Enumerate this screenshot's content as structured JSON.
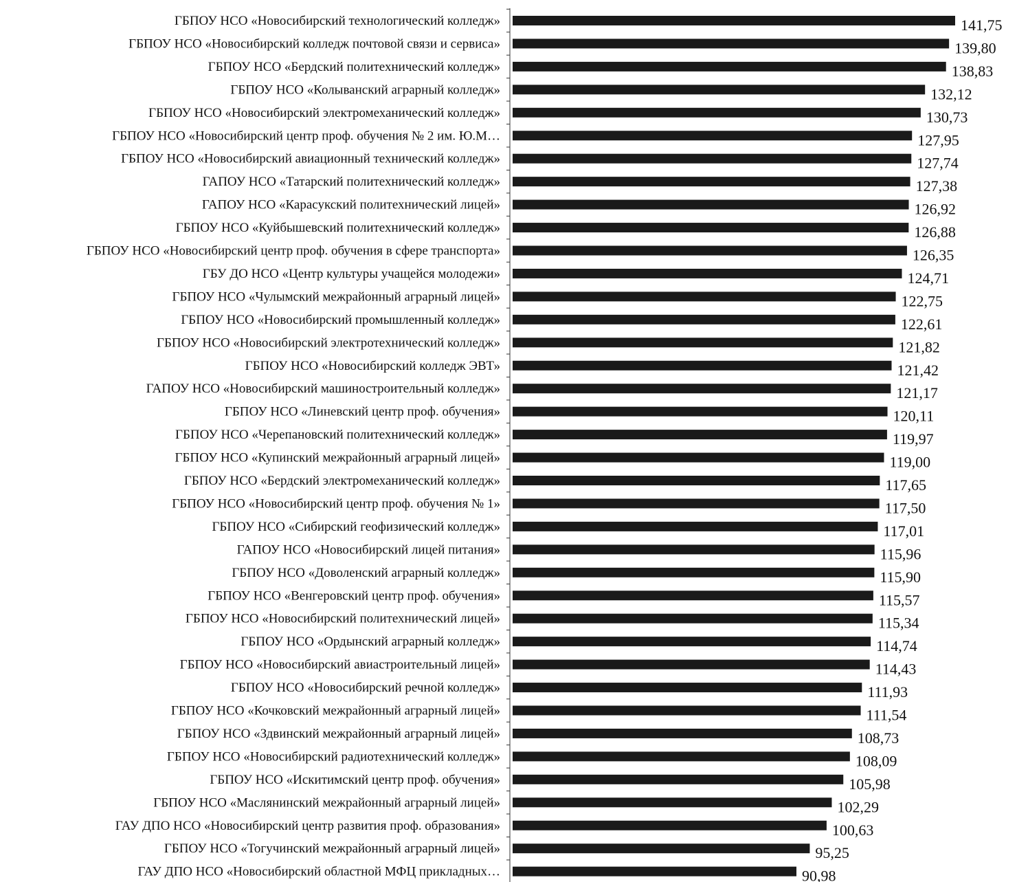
{
  "chart_data": {
    "type": "bar",
    "orientation": "horizontal",
    "title": "",
    "xlabel": "",
    "ylabel": "",
    "grid": false,
    "categories": [
      "ГБПОУ НСО «Новосибирский технологический колледж»",
      "ГБПОУ НСО «Новосибирский колледж почтовой связи и сервиса»",
      "ГБПОУ НСО «Бердский политехнический колледж»",
      "ГБПОУ НСО «Колыванский аграрный колледж»",
      "ГБПОУ НСО «Новосибирский электромеханический колледж»",
      "ГБПОУ НСО «Новосибирский центр проф. обучения № 2 им. Ю.М…",
      "ГБПОУ НСО «Новосибирский авиационный технический колледж»",
      "ГАПОУ НСО «Татарский политехнический колледж»",
      "ГАПОУ НСО «Карасукский политехнический лицей»",
      "ГБПОУ НСО «Куйбышевский политехнический колледж»",
      "ГБПОУ НСО «Новосибирский центр проф. обучения в сфере транспорта»",
      "ГБУ ДО НСО «Центр культуры учащейся молодежи»",
      "ГБПОУ НСО «Чулымский межрайонный аграрный лицей»",
      "ГБПОУ НСО «Новосибирский промышленный колледж»",
      "ГБПОУ НСО «Новосибирский электротехнический колледж»",
      "ГБПОУ НСО «Новосибирский колледж ЭВТ»",
      "ГАПОУ НСО «Новосибирский машиностроительный колледж»",
      "ГБПОУ НСО «Линевский центр проф. обучения»",
      "ГБПОУ НСО «Черепановский политехнический колледж»",
      "ГБПОУ НСО «Купинский межрайонный аграрный лицей»",
      "ГБПОУ НСО «Бердский электромеханический колледж»",
      "ГБПОУ НСО «Новосибирский центр проф. обучения № 1»",
      "ГБПОУ НСО «Сибирский геофизический колледж»",
      "ГАПОУ НСО «Новосибирский лицей питания»",
      "ГБПОУ НСО «Доволенский аграрный колледж»",
      "ГБПОУ НСО «Венгеровский центр проф. обучения»",
      "ГБПОУ НСО «Новосибирский политехнический лицей»",
      "ГБПОУ НСО «Ордынский аграрный колледж»",
      "ГБПОУ НСО «Новосибирский авиастроительный лицей»",
      "ГБПОУ НСО «Новосибирский речной колледж»",
      "ГБПОУ НСО «Кочковский межрайонный аграрный лицей»",
      "ГБПОУ НСО «Здвинский межрайонный аграрный лицей»",
      "ГБПОУ НСО «Новосибирский радиотехнический колледж»",
      "ГБПОУ НСО «Искитимский центр проф. обучения»",
      "ГБПОУ НСО «Маслянинский межрайонный аграрный лицей»",
      "ГАУ ДПО НСО «Новосибирский центр развития проф. образования»",
      "ГБПОУ НСО «Тогучинский межрайонный аграрный лицей»",
      "ГАУ ДПО НСО «Новосибирский областной МФЦ прикладных…"
    ],
    "values": [
      141.75,
      139.8,
      138.83,
      132.12,
      130.73,
      127.95,
      127.74,
      127.38,
      126.92,
      126.88,
      126.35,
      124.71,
      122.75,
      122.61,
      121.82,
      121.42,
      121.17,
      120.11,
      119.97,
      119.0,
      117.65,
      117.5,
      117.01,
      115.96,
      115.9,
      115.57,
      115.34,
      114.74,
      114.43,
      111.93,
      111.54,
      108.73,
      108.09,
      105.98,
      102.29,
      100.63,
      95.25,
      90.98
    ],
    "value_labels": [
      "141,75",
      "139,80",
      "138,83",
      "132,12",
      "130,73",
      "127,95",
      "127,74",
      "127,38",
      "126,92",
      "126,88",
      "126,35",
      "124,71",
      "122,75",
      "122,61",
      "121,82",
      "121,42",
      "121,17",
      "120,11",
      "119,97",
      "119,00",
      "117,65",
      "117,50",
      "117,01",
      "115,96",
      "115,90",
      "115,57",
      "115,34",
      "114,74",
      "114,43",
      "111,93",
      "111,54",
      "108,73",
      "108,09",
      "105,98",
      "102,29",
      "100,63",
      "95,25",
      "90,98"
    ],
    "xlim": [
      0,
      141.75
    ]
  }
}
